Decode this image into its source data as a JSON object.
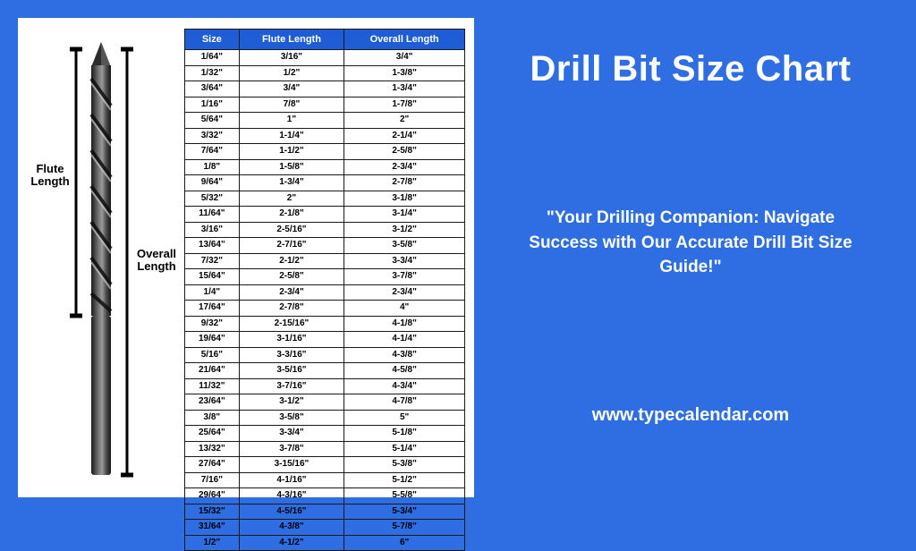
{
  "page": {
    "background_color": "#2f6de3",
    "panel_background": "#ffffff",
    "text_color_light": "#ffffff",
    "text_color_dark": "#000000"
  },
  "right": {
    "title": "Drill Bit Size Chart",
    "tagline": "\"Your Drilling Companion: Navigate Success with Our Accurate Drill Bit Size Guide!\"",
    "url": "www.typecalendar.com"
  },
  "diagram": {
    "flute_label_line1": "Flute",
    "flute_label_line2": "Length",
    "overall_label_line1": "Overall",
    "overall_label_line2": "Length"
  },
  "table": {
    "header_bg": "#1f5dd6",
    "header_fg": "#ffffff",
    "border_color": "#1a1a1a",
    "columns": [
      "Size",
      "Flute Length",
      "Overall Length"
    ],
    "rows": [
      [
        "1/64\"",
        "3/16\"",
        "3/4\""
      ],
      [
        "1/32\"",
        "1/2\"",
        "1-3/8\""
      ],
      [
        "3/64\"",
        "3/4\"",
        "1-3/4\""
      ],
      [
        "1/16\"",
        "7/8\"",
        "1-7/8\""
      ],
      [
        "5/64\"",
        "1\"",
        "2\""
      ],
      [
        "3/32\"",
        "1-1/4\"",
        "2-1/4\""
      ],
      [
        "7/64\"",
        "1-1/2\"",
        "2-5/8\""
      ],
      [
        "1/8\"",
        "1-5/8\"",
        "2-3/4\""
      ],
      [
        "9/64\"",
        "1-3/4\"",
        "2-7/8\""
      ],
      [
        "5/32\"",
        "2\"",
        "3-1/8\""
      ],
      [
        "11/64\"",
        "2-1/8\"",
        "3-1/4\""
      ],
      [
        "3/16\"",
        "2-5/16\"",
        "3-1/2\""
      ],
      [
        "13/64\"",
        "2-7/16\"",
        "3-5/8\""
      ],
      [
        "7/32\"",
        "2-1/2\"",
        "3-3/4\""
      ],
      [
        "15/64\"",
        "2-5/8\"",
        "3-7/8\""
      ],
      [
        "1/4\"",
        "2-3/4\"",
        "2-3/4\""
      ],
      [
        "17/64\"",
        "2-7/8\"",
        "4\""
      ],
      [
        "9/32\"",
        "2-15/16\"",
        "4-1/8\""
      ],
      [
        "19/64\"",
        "3-1/16\"",
        "4-1/4\""
      ],
      [
        "5/16\"",
        "3-3/16\"",
        "4-3/8\""
      ],
      [
        "21/64\"",
        "3-5/16\"",
        "4-5/8\""
      ],
      [
        "11/32\"",
        "3-7/16\"",
        "4-3/4\""
      ],
      [
        "23/64\"",
        "3-1/2\"",
        "4-7/8\""
      ],
      [
        "3/8\"",
        "3-5/8\"",
        "5\""
      ],
      [
        "25/64\"",
        "3-3/4\"",
        "5-1/8\""
      ],
      [
        "13/32\"",
        "3-7/8\"",
        "5-1/4\""
      ],
      [
        "27/64\"",
        "3-15/16\"",
        "5-3/8\""
      ],
      [
        "7/16\"",
        "4-1/16\"",
        "5-1/2\""
      ],
      [
        "29/64\"",
        "4-3/16\"",
        "5-5/8\""
      ],
      [
        "15/32\"",
        "4-5/16\"",
        "5-3/4\""
      ],
      [
        "31/64\"",
        "4-3/8\"",
        "5-7/8\""
      ],
      [
        "1/2\"",
        "4-1/2\"",
        "6\""
      ]
    ]
  }
}
